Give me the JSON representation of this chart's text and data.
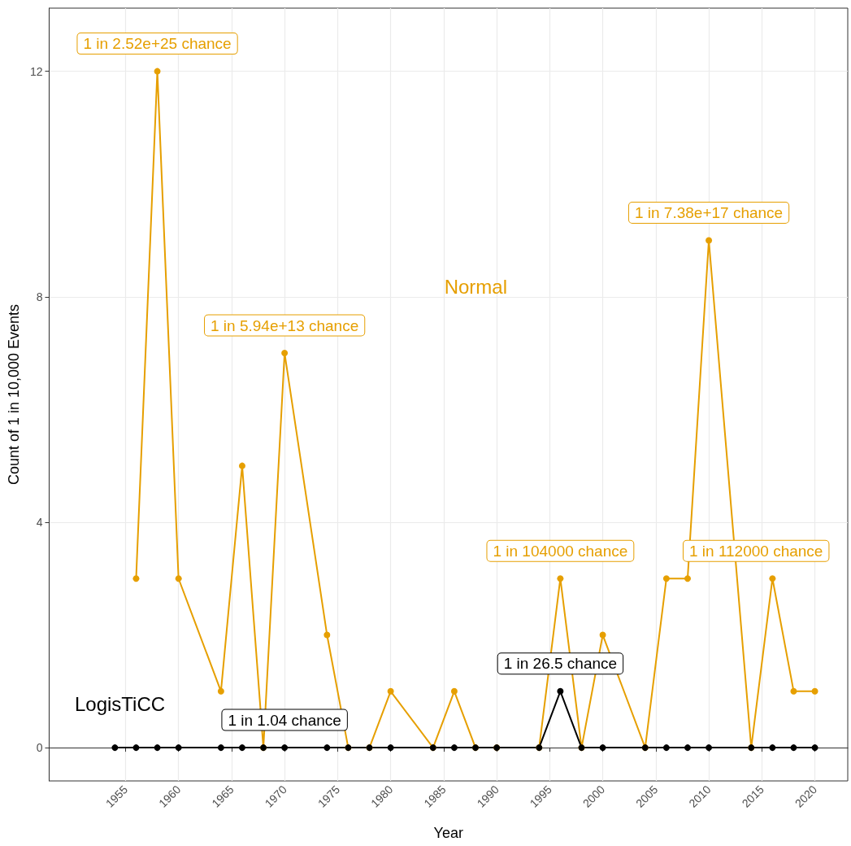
{
  "chart_data": {
    "type": "line",
    "xlabel": "Year",
    "ylabel": "Count of 1 in 10,000 Events",
    "xlim": [
      1947.8,
      2023.1
    ],
    "xticks": [
      1955,
      1960,
      1965,
      1970,
      1975,
      1980,
      1985,
      1990,
      1995,
      2000,
      2005,
      2010,
      2015,
      2020
    ],
    "ylim": [
      -0.59,
      13.12
    ],
    "yticks": [
      0,
      4,
      8,
      12
    ],
    "grid": true,
    "legend": false,
    "marker": "circle",
    "series": [
      {
        "name": "Normal",
        "color": "#e69f00",
        "x": [
          1956,
          1958,
          1960,
          1964,
          1966,
          1968,
          1970,
          1974,
          1976,
          1978,
          1980,
          1984,
          1986,
          1988,
          1990,
          1994,
          1996,
          1998,
          2000,
          2004,
          2006,
          2008,
          2010,
          2014,
          2016,
          2018,
          2020
        ],
        "values": [
          3,
          12,
          3,
          1,
          5,
          0,
          7,
          2,
          0,
          0,
          1,
          0,
          1,
          0,
          0,
          0,
          3,
          0,
          2,
          0,
          3,
          3,
          9,
          0,
          3,
          1,
          1
        ]
      },
      {
        "name": "LogisTiCC",
        "color": "#000000",
        "x": [
          1954,
          1956,
          1958,
          1960,
          1964,
          1966,
          1968,
          1970,
          1974,
          1976,
          1978,
          1980,
          1984,
          1986,
          1988,
          1990,
          1994,
          1996,
          1998,
          2000,
          2004,
          2006,
          2008,
          2010,
          2014,
          2016,
          2018,
          2020
        ],
        "values": [
          0,
          0,
          0,
          0,
          0,
          0,
          0,
          0,
          0,
          0,
          0,
          0,
          0,
          0,
          0,
          0,
          0,
          1,
          0,
          0,
          0,
          0,
          0,
          0,
          0,
          0,
          0,
          0
        ]
      }
    ],
    "annotations": [
      {
        "text": "1 in 2.52e+25 chance",
        "x": 1958,
        "y": 12
      },
      {
        "text": "1 in 5.94e+13 chance",
        "x": 1970,
        "y": 7
      },
      {
        "text": "1 in 7.38e+17 chance",
        "x": 2010,
        "y": 9
      },
      {
        "text": "1 in 104000 chance",
        "x": 1996,
        "y": 3
      },
      {
        "text": "1 in 112000 chance",
        "x": 2016,
        "y": 3
      },
      {
        "text": "1 in 26.5 chance",
        "x": 1996,
        "y": 1
      },
      {
        "text": "1 in 1.04 chance",
        "x": 1970,
        "y": 0
      }
    ]
  }
}
